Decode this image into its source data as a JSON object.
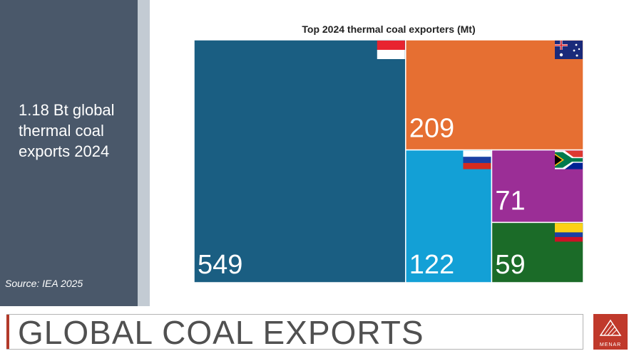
{
  "sidebar": {
    "headline": "1.18  Bt global thermal coal exports 2024",
    "source": "Source: IEA 2025"
  },
  "footer": {
    "title": "GLOBAL COAL EXPORTS",
    "logo_text": "MENAR"
  },
  "colors": {
    "sidebar": "#4a586a",
    "accent": "#b23a2a"
  },
  "chart_data": {
    "type": "treemap",
    "title": "Top 2024 thermal coal exporters (Mt)",
    "unit": "Mt",
    "items": [
      {
        "label": "549",
        "value": 549,
        "flag": "indonesia-flag-icon",
        "color": "#1a5e82"
      },
      {
        "label": "209",
        "value": 209,
        "flag": "australia-flag-icon",
        "color": "#e66f32"
      },
      {
        "label": "122",
        "value": 122,
        "flag": "russia-flag-icon",
        "color": "#13a0d6"
      },
      {
        "label": "71",
        "value": 71,
        "flag": "south-africa-flag-icon",
        "color": "#9b2e96"
      },
      {
        "label": "59",
        "value": 59,
        "flag": "colombia-flag-icon",
        "color": "#1b6b28"
      }
    ]
  }
}
